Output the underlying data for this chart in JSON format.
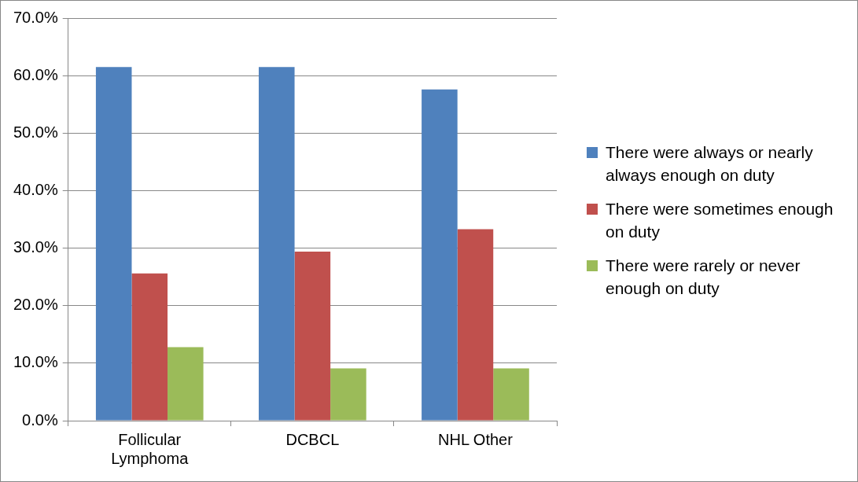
{
  "chart_data": {
    "type": "bar",
    "categories": [
      "Follicular Lymphoma",
      "DCBCL",
      "NHL Other"
    ],
    "series": [
      {
        "name": "There were always or nearly always enough on duty",
        "color": "#4f81bd",
        "values": [
          61.5,
          61.5,
          57.6
        ]
      },
      {
        "name": "There were sometimes enough on duty",
        "color": "#c0504d",
        "values": [
          25.6,
          29.4,
          33.3
        ]
      },
      {
        "name": "There were rarely or never enough on duty",
        "color": "#9bbb59",
        "values": [
          12.8,
          9.1,
          9.1
        ]
      }
    ],
    "ylim": [
      0,
      70
    ],
    "yticks": [
      {
        "value": 0,
        "label": "0.0%"
      },
      {
        "value": 10,
        "label": "10.0%"
      },
      {
        "value": 20,
        "label": "20.0%"
      },
      {
        "value": 30,
        "label": "30.0%"
      },
      {
        "value": 40,
        "label": "40.0%"
      },
      {
        "value": 50,
        "label": "50.0%"
      },
      {
        "value": 60,
        "label": "60.0%"
      },
      {
        "value": 70,
        "label": "70.0%"
      }
    ],
    "grid": "y",
    "legend": "right"
  }
}
